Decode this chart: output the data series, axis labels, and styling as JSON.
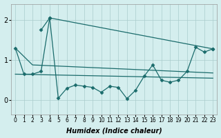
{
  "background_color": "#d4eeee",
  "line_color": "#1a6b6b",
  "grid_color": "#aacccc",
  "xlabel": "Humidex (Indice chaleur)",
  "ylim": [
    -0.35,
    2.4
  ],
  "xlim": [
    -0.5,
    23.5
  ],
  "yticks": [
    0,
    1,
    2
  ],
  "xticks": [
    0,
    1,
    2,
    3,
    4,
    5,
    6,
    7,
    8,
    9,
    10,
    11,
    12,
    13,
    14,
    15,
    16,
    17,
    18,
    19,
    20,
    21,
    22,
    23
  ],
  "series": [
    {
      "x": [
        3,
        4,
        23
      ],
      "y": [
        1.75,
        2.05,
        1.28
      ],
      "marker": true
    },
    {
      "x": [
        0,
        2,
        23
      ],
      "y": [
        1.3,
        0.88,
        0.68
      ],
      "marker": false
    },
    {
      "x": [
        0,
        23
      ],
      "y": [
        0.65,
        0.55
      ],
      "marker": false
    },
    {
      "x": [
        0,
        1,
        2,
        3,
        4,
        5,
        6,
        7,
        8,
        9,
        10,
        11,
        12,
        13,
        14,
        15,
        16,
        17,
        18,
        19,
        20,
        21,
        22,
        23
      ],
      "y": [
        1.3,
        0.65,
        0.65,
        0.72,
        2.05,
        0.05,
        0.3,
        0.38,
        0.35,
        0.32,
        0.2,
        0.35,
        0.32,
        0.04,
        0.25,
        0.6,
        0.88,
        0.5,
        0.45,
        0.5,
        0.72,
        1.32,
        1.2,
        1.28
      ],
      "marker": true
    }
  ]
}
